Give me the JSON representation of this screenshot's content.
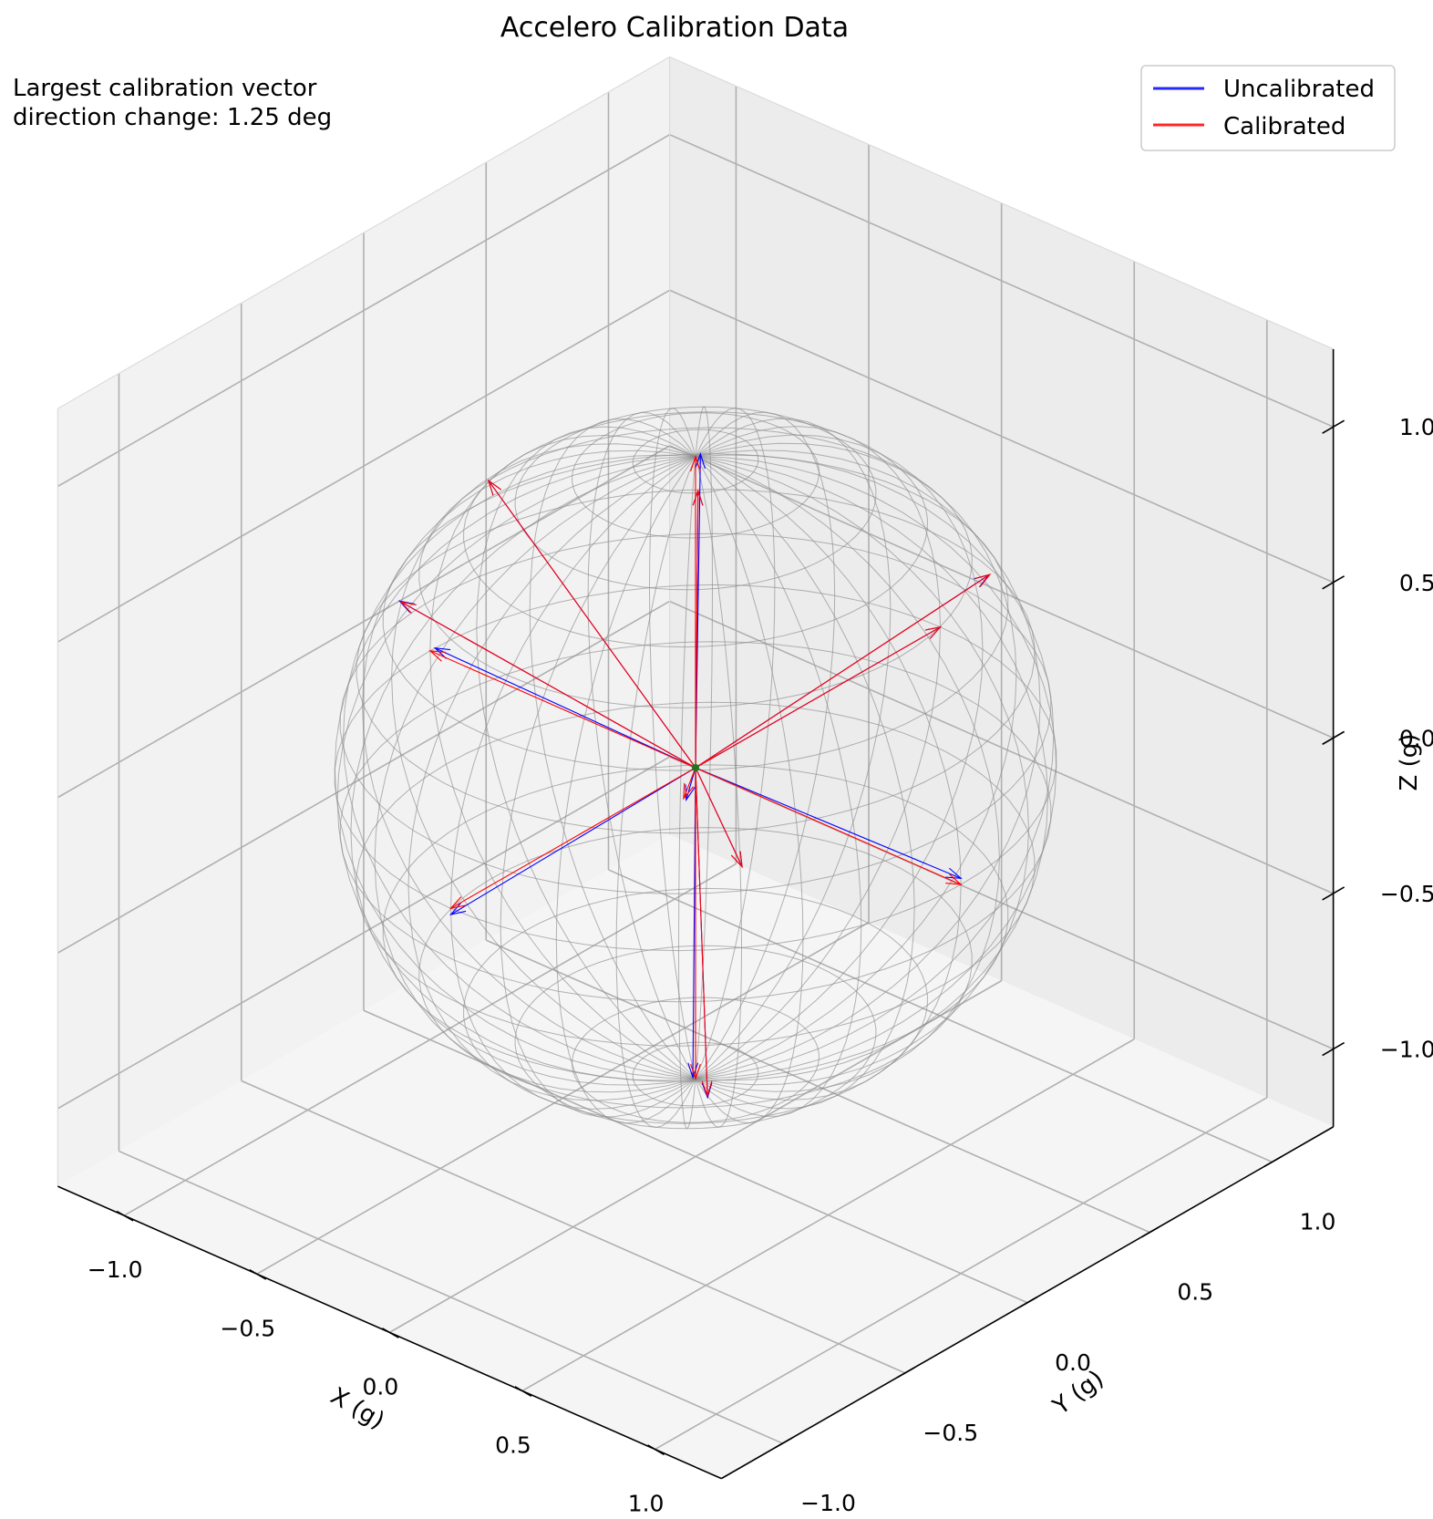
{
  "chart_data": {
    "type": "3d-quiver",
    "title": "Accelero Calibration Data",
    "annotation": "Largest calibration vector\ndirection change: 1.25 deg",
    "xlabel": "X (g)",
    "ylabel": "Y (g)",
    "zlabel": "Z (g)",
    "xlim": [
      -1.25,
      1.25
    ],
    "ylim": [
      -1.25,
      1.25
    ],
    "zlim": [
      -1.25,
      1.25
    ],
    "xticks": [
      "−1.0",
      "−0.5",
      "0.0",
      "0.5",
      "1.0"
    ],
    "yticks": [
      "−1.0",
      "−0.5",
      "0.0",
      "0.5",
      "1.0"
    ],
    "zticks": [
      "−1.0",
      "−0.5",
      "0.0",
      "0.5",
      "1.0"
    ],
    "grid": true,
    "legend_position": "top-right",
    "reference_surface": "unit sphere wireframe",
    "series": [
      {
        "name": "Uncalibrated",
        "color": "#0000ff",
        "vectors": [
          [
            0.0,
            0.02,
            1.0
          ],
          [
            -0.01,
            0.0,
            -1.0
          ],
          [
            -1.0,
            0.02,
            0.0
          ],
          [
            1.0,
            0.0,
            0.02
          ],
          [
            0.0,
            1.0,
            0.0
          ],
          [
            0.0,
            -1.0,
            -0.02
          ],
          [
            -0.58,
            -0.58,
            0.58
          ],
          [
            0.58,
            0.57,
            0.58
          ],
          [
            -0.57,
            0.58,
            -0.58
          ],
          [
            0.58,
            -0.58,
            -0.58
          ],
          [
            0.12,
            -0.12,
            0.99
          ],
          [
            0.12,
            0.06,
            -0.3
          ],
          [
            -0.78,
            0.0,
            0.63
          ]
        ]
      },
      {
        "name": "Calibrated",
        "color": "#ff0000",
        "vectors": [
          [
            0.0,
            0.0,
            1.0
          ],
          [
            0.0,
            0.0,
            -1.0
          ],
          [
            -1.0,
            0.0,
            0.0
          ],
          [
            1.0,
            0.0,
            0.0
          ],
          [
            0.0,
            1.0,
            0.0
          ],
          [
            0.0,
            -1.0,
            0.0
          ],
          [
            -0.577,
            -0.577,
            0.577
          ],
          [
            0.577,
            0.577,
            0.577
          ],
          [
            -0.577,
            0.577,
            -0.577
          ],
          [
            0.577,
            -0.577,
            -0.577
          ],
          [
            0.12,
            -0.12,
            0.99
          ],
          [
            0.12,
            0.06,
            -0.3
          ],
          [
            -0.78,
            0.0,
            0.63
          ]
        ]
      }
    ]
  }
}
